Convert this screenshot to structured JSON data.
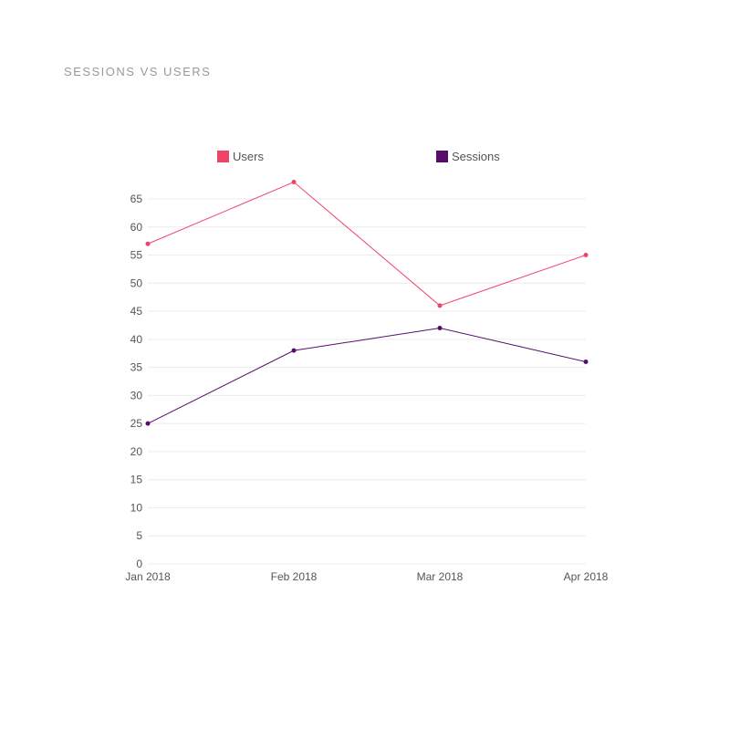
{
  "chart_data": {
    "type": "line",
    "title": "SESSIONS VS USERS",
    "categories": [
      "Jan 2018",
      "Feb 2018",
      "Mar 2018",
      "Apr 2018"
    ],
    "series": [
      {
        "name": "Users",
        "color": "#f0436a",
        "values": [
          57,
          68,
          46,
          55
        ]
      },
      {
        "name": "Sessions",
        "color": "#560d6c",
        "values": [
          25,
          38,
          42,
          36
        ]
      }
    ],
    "yticks": [
      0,
      5,
      10,
      15,
      20,
      25,
      30,
      35,
      40,
      45,
      50,
      55,
      60,
      65
    ],
    "ylim": [
      0,
      65
    ],
    "grid": true,
    "legend": "top"
  }
}
